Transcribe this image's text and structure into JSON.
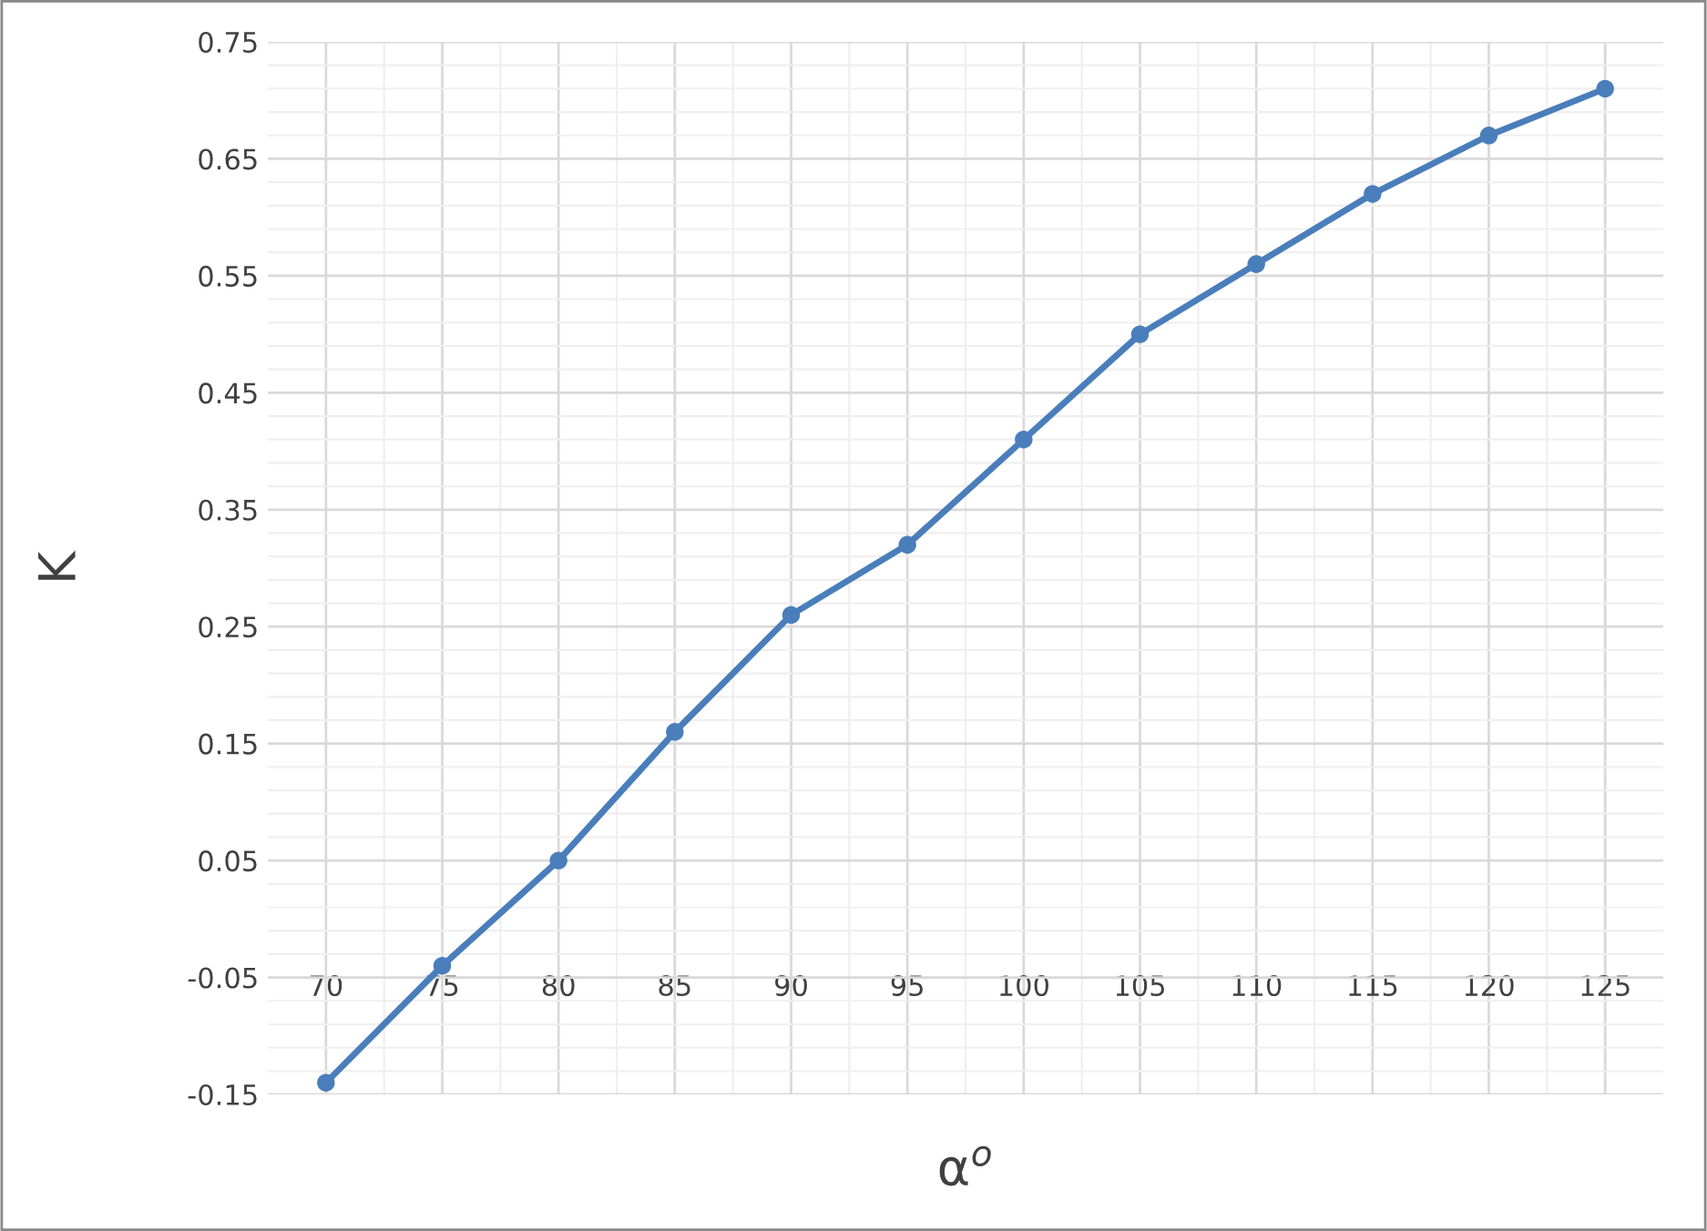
{
  "chart_data": {
    "type": "line",
    "xlabel": "α$^{o}$",
    "ylabel": "K",
    "categories": [
      "70",
      "75",
      "80",
      "85",
      "90",
      "95",
      "100",
      "105",
      "110",
      "115",
      "120",
      "125"
    ],
    "series": [
      {
        "color": "#4a7ebb",
        "values": [
          -0.14,
          -0.04,
          0.05,
          0.16,
          0.26,
          0.32,
          0.41,
          0.5,
          0.56,
          0.62,
          0.67,
          0.71
        ]
      }
    ],
    "ylim": [
      -0.15,
      0.75
    ],
    "yticks": [
      -0.15,
      -0.05,
      0.05,
      0.15,
      0.25,
      0.35,
      0.45,
      0.55,
      0.65,
      0.75
    ],
    "grid": true,
    "marker": "circle",
    "line_style": "solid",
    "legend": false
  }
}
